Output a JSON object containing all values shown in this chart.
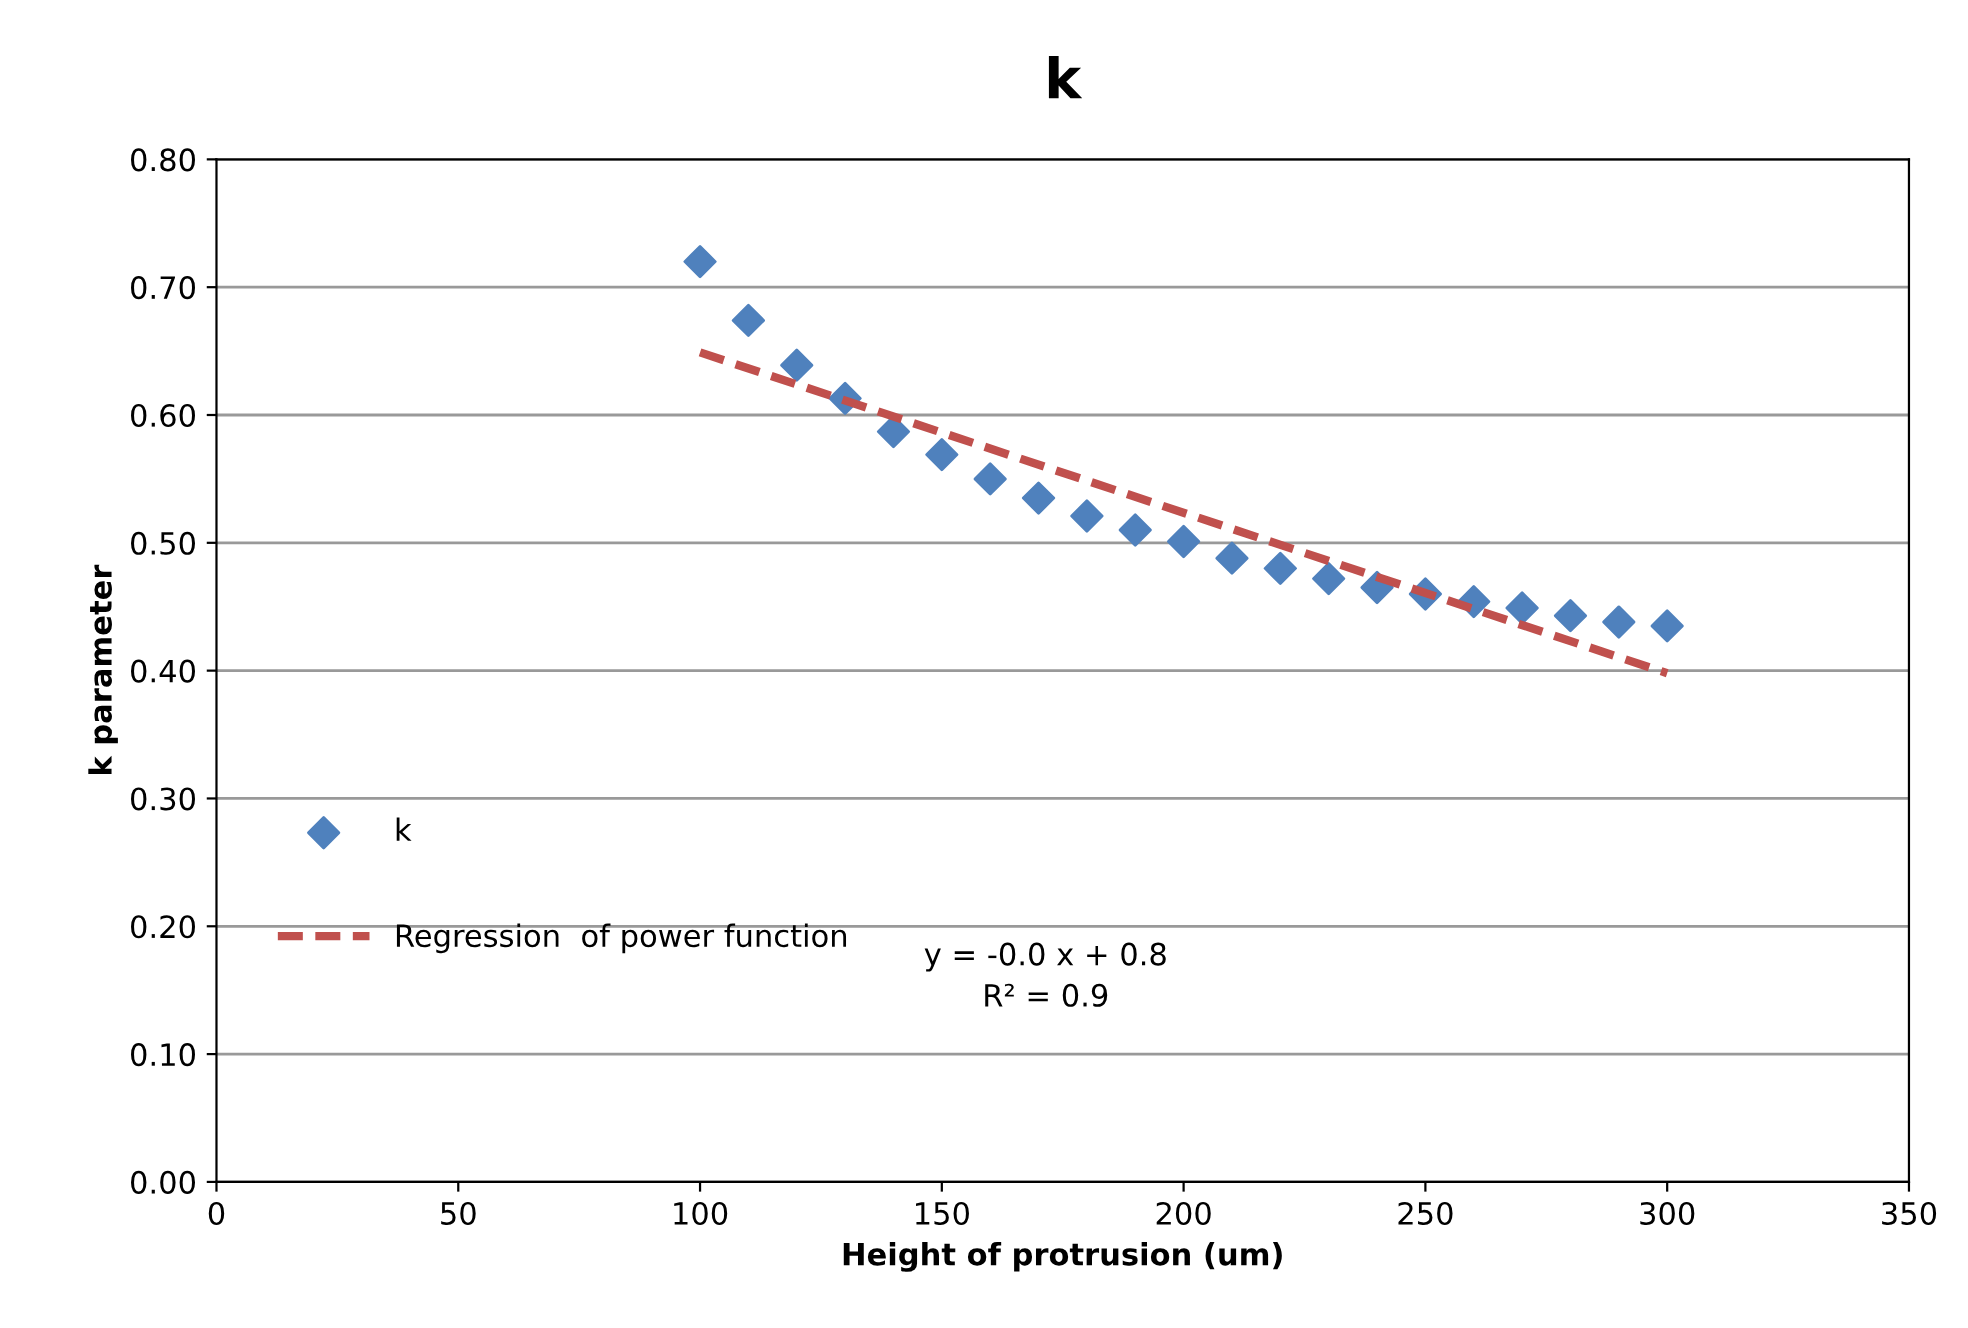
{
  "chart_data": {
    "type": "scatter",
    "title": "k",
    "xlabel": "Height of protrusion (um)",
    "ylabel": "k parameter",
    "series": [
      {
        "name": "k",
        "color": "#4f81bd",
        "marker": "diamond",
        "x": [
          100,
          110,
          120,
          130,
          140,
          150,
          160,
          170,
          180,
          190,
          200,
          210,
          220,
          230,
          240,
          250,
          260,
          270,
          280,
          290,
          300
        ],
        "values": [
          0.72,
          0.674,
          0.639,
          0.613,
          0.587,
          0.569,
          0.55,
          0.535,
          0.521,
          0.51,
          0.501,
          0.488,
          0.48,
          0.472,
          0.465,
          0.46,
          0.454,
          0.449,
          0.443,
          0.438,
          0.435
        ]
      },
      {
        "name": "Regression  of power function",
        "type": "line",
        "color": "#c0504d",
        "line_style": "dashed",
        "marker": "none",
        "x": [
          100,
          300
        ],
        "values": [
          0.649,
          0.398
        ]
      }
    ],
    "annotations": [
      "y = -0.0 x + 0.8\nR² = 0.9"
    ],
    "xlim": [
      0,
      350
    ],
    "xticks": [
      0,
      50,
      100,
      150,
      200,
      250,
      300,
      350
    ],
    "ylim": [
      0,
      0.8
    ],
    "yticks": [
      {
        "value": 0,
        "label": "0.00"
      },
      {
        "value": 0.1,
        "label": "0.10"
      },
      {
        "value": 0.2,
        "label": "0.20"
      },
      {
        "value": 0.3,
        "label": "0.30"
      },
      {
        "value": 0.4,
        "label": "0.40"
      },
      {
        "value": 0.5,
        "label": "0.50"
      },
      {
        "value": 0.6,
        "label": "0.60"
      },
      {
        "value": 0.7,
        "label": "0.70"
      },
      {
        "value": 0.8,
        "label": "0.80"
      }
    ],
    "grid": "y",
    "legend": "left"
  }
}
